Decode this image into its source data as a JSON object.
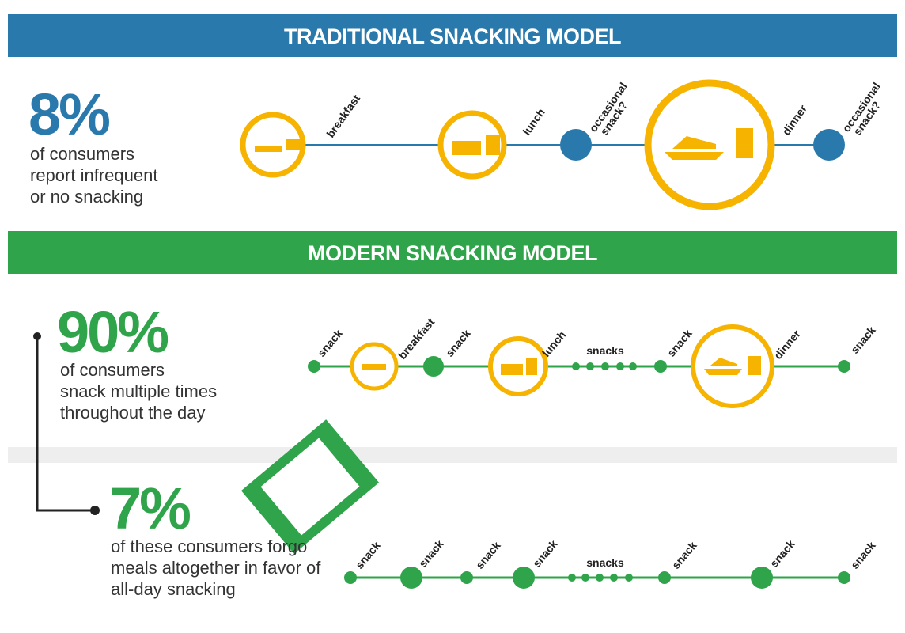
{
  "traditional": {
    "title": "TRADITIONAL SNACKING MODEL",
    "stat": "8%",
    "description": [
      "of consumers",
      "report infrequent",
      "or no snacking"
    ],
    "timeline": [
      [
        "breakfast"
      ],
      [
        "lunch"
      ],
      [
        "occasional",
        "snack?"
      ],
      [
        "dinner"
      ],
      [
        "occasional",
        "snack?"
      ]
    ]
  },
  "modern": {
    "title": "MODERN SNACKING MODEL",
    "multiple": {
      "stat": "90%",
      "description": [
        "of consumers",
        "snack multiple times",
        "throughout the day"
      ],
      "timeline": [
        "snack",
        "breakfast",
        "snack",
        "lunch",
        "snacks",
        "snack",
        "dinner",
        "snack"
      ]
    },
    "forgo": {
      "stat": "7%",
      "description": [
        "of these consumers forgo",
        "meals altogether in favor of",
        "all-day snacking"
      ],
      "timeline": [
        "snack",
        "snack",
        "snack",
        "snack",
        "snacks",
        "snack",
        "snack",
        "snack"
      ]
    }
  }
}
